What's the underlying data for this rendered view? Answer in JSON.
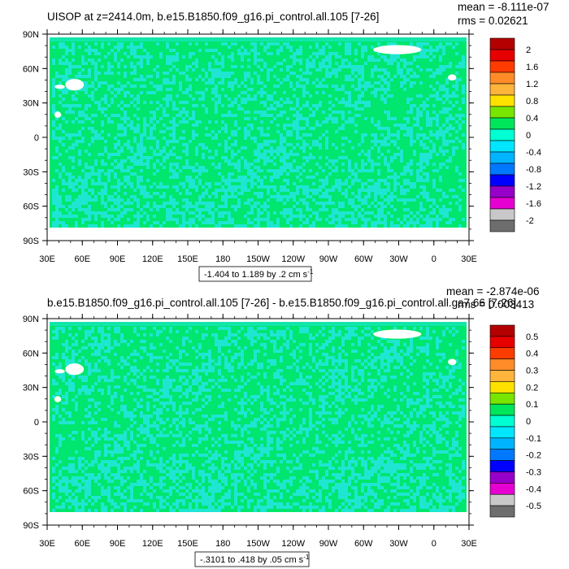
{
  "panels": [
    {
      "title": "UISOP at z=2414.0m, b.e15.B1850.f09_g16.pi_control.all.105 [7-26]",
      "mean_text": "mean = -8.111e-07",
      "rms_text": "rms = 0.02621",
      "range_text": "-1.404 to 1.189 by .2 cm s",
      "range_sup": "-1",
      "colorbar_labels": [
        "2",
        "1.6",
        "1.2",
        "0.8",
        "0.4",
        "0",
        "-0.4",
        "-0.8",
        "-1.2",
        "-1.6",
        "-2"
      ]
    },
    {
      "title": "b.e15.B1850.f09_g16.pi_control.all.105 [7-26] - b.e15.B1850.f09_g16.pi_control.all.ga7.66 [7-26]",
      "mean_text": "mean = -2.874e-06",
      "rms_text": "rms = 0.003413",
      "range_text": "-.3101 to .418 by .05 cm s",
      "range_sup": "-1",
      "colorbar_labels": [
        "0.5",
        "0.4",
        "0.3",
        "0.2",
        "0.1",
        "0",
        "-0.1",
        "-0.2",
        "-0.3",
        "-0.4",
        "-0.5"
      ]
    }
  ],
  "axes": {
    "lat_labels": [
      "90N",
      "60N",
      "30N",
      "0",
      "30S",
      "60S",
      "90S"
    ],
    "lon_labels": [
      "30E",
      "60E",
      "90E",
      "120E",
      "150E",
      "180",
      "150W",
      "120W",
      "90W",
      "60W",
      "30W",
      "0",
      "30E"
    ]
  },
  "colors": {
    "colorbar": [
      "#b40000",
      "#e60000",
      "#ff3c00",
      "#ff8c28",
      "#ffb43c",
      "#ffe100",
      "#78e600",
      "#00e65a",
      "#00ffd2",
      "#00e6ff",
      "#00b4ff",
      "#0078ff",
      "#0000ff",
      "#9600c8",
      "#e600d2",
      "#c8c8c8",
      "#6e6e6e"
    ],
    "map_fill": "#00e66e",
    "map_speckle": "#1ee6d2",
    "missing": "#ffffff"
  },
  "chart_data": [
    {
      "type": "heatmap",
      "title": "UISOP at z=2414.0m, b.e15.B1850.f09_g16.pi_control.all.105 [7-26]",
      "x": [
        "30E",
        "60E",
        "90E",
        "120E",
        "150E",
        "180",
        "150W",
        "120W",
        "90W",
        "60W",
        "30W",
        "0",
        "30E"
      ],
      "y": [
        "90N",
        "60N",
        "30N",
        "0",
        "30S",
        "60S",
        "90S"
      ],
      "contour_levels": [
        -2,
        -1.6,
        -1.2,
        -0.8,
        -0.4,
        0,
        0.4,
        0.8,
        1.2,
        1.6,
        2
      ],
      "min": -1.404,
      "max": 1.189,
      "interval": 0.2,
      "units": "cm s-1",
      "mean": -8.111e-07,
      "rms": 0.02621
    },
    {
      "type": "heatmap",
      "title": "b.e15.B1850.f09_g16.pi_control.all.105 [7-26] - b.e15.B1850.f09_g16.pi_control.all.ga7.66 [7-26]",
      "x": [
        "30E",
        "60E",
        "90E",
        "120E",
        "150E",
        "180",
        "150W",
        "120W",
        "90W",
        "60W",
        "30W",
        "0",
        "30E"
      ],
      "y": [
        "90N",
        "60N",
        "30N",
        "0",
        "30S",
        "60S",
        "90S"
      ],
      "contour_levels": [
        -0.5,
        -0.4,
        -0.3,
        -0.2,
        -0.1,
        0,
        0.1,
        0.2,
        0.3,
        0.4,
        0.5
      ],
      "min": -0.3101,
      "max": 0.418,
      "interval": 0.05,
      "units": "cm s-1",
      "mean": -2.874e-06,
      "rms": 0.003413
    }
  ]
}
